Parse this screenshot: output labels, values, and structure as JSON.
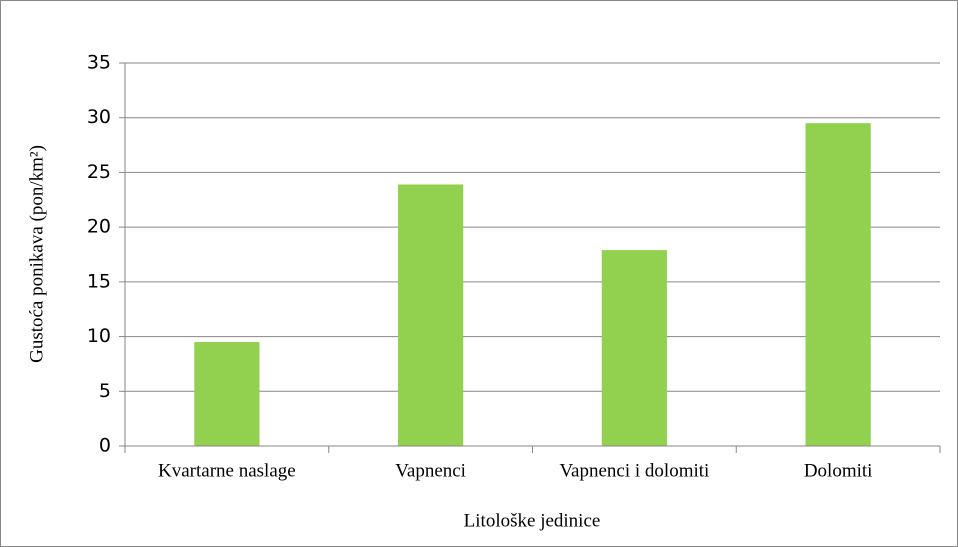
{
  "chart_data": {
    "type": "bar",
    "categories": [
      "Kvartarne naslage",
      "Vapnenci",
      "Vapnenci i dolomiti",
      "Dolomiti"
    ],
    "values": [
      9.5,
      23.9,
      17.9,
      29.5
    ],
    "color": "#92d050",
    "ylim": [
      0,
      35
    ],
    "yticks": [
      0,
      5,
      10,
      15,
      20,
      25,
      30,
      35
    ],
    "grid": true,
    "x_label": "Litološke jedinice",
    "y_label": "Gustoća ponikava (pon/km²)"
  }
}
